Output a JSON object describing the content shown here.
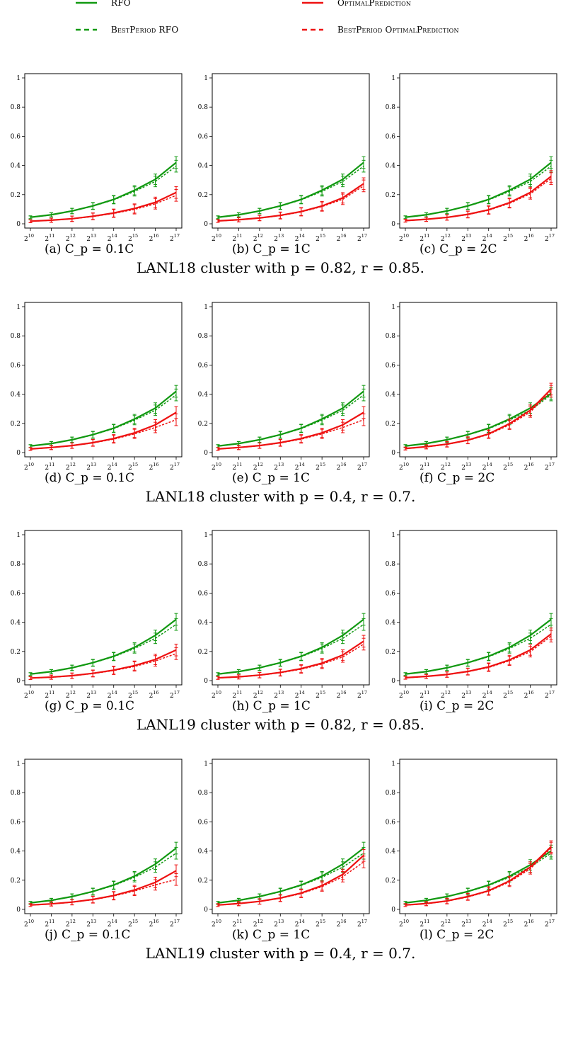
{
  "legend": [
    {
      "label": "RFO",
      "color": "#119911",
      "dashed": false
    },
    {
      "label": "OptimalPrediction",
      "color": "#ee1111",
      "dashed": false
    },
    {
      "label": "BestPeriod RFO",
      "color": "#119911",
      "dashed": true
    },
    {
      "label": "BestPeriod OptimalPrediction",
      "color": "#ee1111",
      "dashed": true
    }
  ],
  "colors": {
    "green": "#119911",
    "red": "#ee1111"
  },
  "rows": [
    {
      "caption": "LANL18 cluster with p = 0.82, r = 0.85.",
      "subcaptions": [
        "(a) C_p = 0.1C",
        "(b) C_p = 1C",
        "(c) C_p = 2C"
      ]
    },
    {
      "caption": "LANL18 cluster with p = 0.4, r = 0.7.",
      "subcaptions": [
        "(d) C_p = 0.1C",
        "(e) C_p = 1C",
        "(f) C_p = 2C"
      ]
    },
    {
      "caption": "LANL19 cluster with p = 0.82, r = 0.85.",
      "subcaptions": [
        "(g) C_p = 0.1C",
        "(h) C_p = 1C",
        "(i) C_p = 2C"
      ]
    },
    {
      "caption": "LANL19 cluster with p = 0.4, r = 0.7.",
      "subcaptions": [
        "(j) C_p = 0.1C",
        "(k) C_p = 1C",
        "(l) C_p = 2C"
      ]
    }
  ],
  "chart_data": [
    {
      "id": "a",
      "type": "line",
      "x": [
        10,
        11,
        12,
        13,
        14,
        15,
        16,
        17
      ],
      "ylim": [
        0,
        1
      ],
      "yticks": [
        "0",
        "0.2",
        "0.4",
        "0.6",
        "0.8",
        "1"
      ],
      "xticks": [
        "2^10",
        "2^11",
        "2^12",
        "2^13",
        "2^14",
        "2^15",
        "2^16",
        "2^17"
      ],
      "series": [
        {
          "name": "RFO",
          "values": [
            0.045,
            0.062,
            0.088,
            0.123,
            0.167,
            0.23,
            0.305,
            0.42
          ]
        },
        {
          "name": "BestPeriod RFO",
          "values": [
            0.044,
            0.061,
            0.087,
            0.121,
            0.164,
            0.222,
            0.29,
            0.395
          ]
        },
        {
          "name": "OptimalPrediction",
          "values": [
            0.018,
            0.025,
            0.035,
            0.052,
            0.074,
            0.105,
            0.147,
            0.215
          ]
        },
        {
          "name": "BestPeriod OptimalPrediction",
          "values": [
            0.017,
            0.024,
            0.034,
            0.05,
            0.071,
            0.099,
            0.137,
            0.195
          ]
        }
      ]
    },
    {
      "id": "b",
      "type": "line",
      "x": [
        10,
        11,
        12,
        13,
        14,
        15,
        16,
        17
      ],
      "ylim": [
        0,
        1
      ],
      "yticks": [
        "0",
        "0.2",
        "0.4",
        "0.6",
        "0.8",
        "1"
      ],
      "xticks": [
        "2^10",
        "2^11",
        "2^12",
        "2^13",
        "2^14",
        "2^15",
        "2^16",
        "2^17"
      ],
      "series": [
        {
          "name": "RFO",
          "values": [
            0.045,
            0.062,
            0.088,
            0.123,
            0.167,
            0.23,
            0.305,
            0.42
          ]
        },
        {
          "name": "BestPeriod RFO",
          "values": [
            0.044,
            0.061,
            0.087,
            0.121,
            0.164,
            0.222,
            0.29,
            0.395
          ]
        },
        {
          "name": "OptimalPrediction",
          "values": [
            0.02,
            0.028,
            0.04,
            0.058,
            0.084,
            0.122,
            0.178,
            0.275
          ]
        },
        {
          "name": "BestPeriod OptimalPrediction",
          "values": [
            0.019,
            0.027,
            0.039,
            0.056,
            0.081,
            0.118,
            0.168,
            0.26
          ]
        }
      ]
    },
    {
      "id": "c",
      "type": "line",
      "x": [
        10,
        11,
        12,
        13,
        14,
        15,
        16,
        17
      ],
      "ylim": [
        0,
        1
      ],
      "yticks": [
        "0",
        "0.2",
        "0.4",
        "0.6",
        "0.8",
        "1"
      ],
      "xticks": [
        "2^10",
        "2^11",
        "2^12",
        "2^13",
        "2^14",
        "2^15",
        "2^16",
        "2^17"
      ],
      "series": [
        {
          "name": "RFO",
          "values": [
            0.045,
            0.062,
            0.088,
            0.123,
            0.167,
            0.23,
            0.305,
            0.42
          ]
        },
        {
          "name": "BestPeriod RFO",
          "values": [
            0.044,
            0.061,
            0.087,
            0.121,
            0.164,
            0.222,
            0.29,
            0.395
          ]
        },
        {
          "name": "OptimalPrediction",
          "values": [
            0.022,
            0.031,
            0.044,
            0.065,
            0.096,
            0.145,
            0.215,
            0.325
          ]
        },
        {
          "name": "BestPeriod OptimalPrediction",
          "values": [
            0.021,
            0.03,
            0.043,
            0.063,
            0.093,
            0.14,
            0.205,
            0.31
          ]
        }
      ]
    },
    {
      "id": "d",
      "type": "line",
      "x": [
        10,
        11,
        12,
        13,
        14,
        15,
        16,
        17
      ],
      "ylim": [
        0,
        1
      ],
      "yticks": [
        "0",
        "0.2",
        "0.4",
        "0.6",
        "0.8",
        "1"
      ],
      "xticks": [
        "2^10",
        "2^11",
        "2^12",
        "2^13",
        "2^14",
        "2^15",
        "2^16",
        "2^17"
      ],
      "series": [
        {
          "name": "RFO",
          "values": [
            0.045,
            0.062,
            0.088,
            0.123,
            0.167,
            0.23,
            0.305,
            0.42
          ]
        },
        {
          "name": "BestPeriod RFO",
          "values": [
            0.044,
            0.061,
            0.087,
            0.121,
            0.164,
            0.222,
            0.29,
            0.395
          ]
        },
        {
          "name": "OptimalPrediction",
          "values": [
            0.025,
            0.035,
            0.048,
            0.068,
            0.096,
            0.135,
            0.19,
            0.275
          ]
        },
        {
          "name": "BestPeriod OptimalPrediction",
          "values": [
            0.024,
            0.034,
            0.047,
            0.066,
            0.092,
            0.128,
            0.172,
            0.225
          ]
        }
      ]
    },
    {
      "id": "e",
      "type": "line",
      "x": [
        10,
        11,
        12,
        13,
        14,
        15,
        16,
        17
      ],
      "ylim": [
        0,
        1
      ],
      "yticks": [
        "0",
        "0.2",
        "0.4",
        "0.6",
        "0.8",
        "1"
      ],
      "xticks": [
        "2^10",
        "2^11",
        "2^12",
        "2^13",
        "2^14",
        "2^15",
        "2^16",
        "2^17"
      ],
      "series": [
        {
          "name": "RFO",
          "values": [
            0.045,
            0.062,
            0.088,
            0.123,
            0.167,
            0.23,
            0.305,
            0.42
          ]
        },
        {
          "name": "BestPeriod RFO",
          "values": [
            0.044,
            0.061,
            0.087,
            0.121,
            0.164,
            0.222,
            0.29,
            0.395
          ]
        },
        {
          "name": "OptimalPrediction",
          "values": [
            0.025,
            0.035,
            0.048,
            0.068,
            0.096,
            0.135,
            0.19,
            0.275
          ]
        },
        {
          "name": "BestPeriod OptimalPrediction",
          "values": [
            0.024,
            0.034,
            0.047,
            0.066,
            0.092,
            0.128,
            0.172,
            0.225
          ]
        }
      ]
    },
    {
      "id": "f",
      "type": "line",
      "x": [
        10,
        11,
        12,
        13,
        14,
        15,
        16,
        17
      ],
      "ylim": [
        0,
        1
      ],
      "yticks": [
        "0",
        "0.2",
        "0.4",
        "0.6",
        "0.8",
        "1"
      ],
      "xticks": [
        "2^10",
        "2^11",
        "2^12",
        "2^13",
        "2^14",
        "2^15",
        "2^16",
        "2^17"
      ],
      "series": [
        {
          "name": "RFO",
          "values": [
            0.045,
            0.062,
            0.088,
            0.123,
            0.167,
            0.23,
            0.305,
            0.405
          ]
        },
        {
          "name": "BestPeriod RFO",
          "values": [
            0.044,
            0.061,
            0.087,
            0.121,
            0.164,
            0.222,
            0.29,
            0.395
          ]
        },
        {
          "name": "OptimalPrediction",
          "values": [
            0.028,
            0.04,
            0.058,
            0.085,
            0.128,
            0.198,
            0.29,
            0.435
          ]
        },
        {
          "name": "BestPeriod OptimalPrediction",
          "values": [
            0.027,
            0.039,
            0.056,
            0.083,
            0.124,
            0.19,
            0.278,
            0.42
          ]
        }
      ]
    },
    {
      "id": "g",
      "type": "line",
      "x": [
        10,
        11,
        12,
        13,
        14,
        15,
        16,
        17
      ],
      "ylim": [
        0,
        1
      ],
      "yticks": [
        "0",
        "0.2",
        "0.4",
        "0.6",
        "0.8",
        "1"
      ],
      "xticks": [
        "2^10",
        "2^11",
        "2^12",
        "2^13",
        "2^14",
        "2^15",
        "2^16",
        "2^17"
      ],
      "series": [
        {
          "name": "RFO",
          "values": [
            0.045,
            0.062,
            0.088,
            0.123,
            0.167,
            0.228,
            0.31,
            0.42
          ]
        },
        {
          "name": "BestPeriod RFO",
          "values": [
            0.044,
            0.061,
            0.087,
            0.121,
            0.164,
            0.22,
            0.29,
            0.385
          ]
        },
        {
          "name": "OptimalPrediction",
          "values": [
            0.018,
            0.024,
            0.034,
            0.05,
            0.072,
            0.103,
            0.145,
            0.21
          ]
        },
        {
          "name": "BestPeriod OptimalPrediction",
          "values": [
            0.017,
            0.023,
            0.033,
            0.048,
            0.069,
            0.097,
            0.135,
            0.185
          ]
        }
      ]
    },
    {
      "id": "h",
      "type": "line",
      "x": [
        10,
        11,
        12,
        13,
        14,
        15,
        16,
        17
      ],
      "ylim": [
        0,
        1
      ],
      "yticks": [
        "0",
        "0.2",
        "0.4",
        "0.6",
        "0.8",
        "1"
      ],
      "xticks": [
        "2^10",
        "2^11",
        "2^12",
        "2^13",
        "2^14",
        "2^15",
        "2^16",
        "2^17"
      ],
      "series": [
        {
          "name": "RFO",
          "values": [
            0.045,
            0.062,
            0.088,
            0.123,
            0.167,
            0.228,
            0.31,
            0.42
          ]
        },
        {
          "name": "BestPeriod RFO",
          "values": [
            0.044,
            0.061,
            0.087,
            0.121,
            0.164,
            0.22,
            0.29,
            0.385
          ]
        },
        {
          "name": "OptimalPrediction",
          "values": [
            0.019,
            0.026,
            0.038,
            0.056,
            0.082,
            0.12,
            0.175,
            0.27
          ]
        },
        {
          "name": "BestPeriod OptimalPrediction",
          "values": [
            0.018,
            0.025,
            0.037,
            0.054,
            0.078,
            0.114,
            0.162,
            0.25
          ]
        }
      ]
    },
    {
      "id": "i",
      "type": "line",
      "x": [
        10,
        11,
        12,
        13,
        14,
        15,
        16,
        17
      ],
      "ylim": [
        0,
        1
      ],
      "yticks": [
        "0",
        "0.2",
        "0.4",
        "0.6",
        "0.8",
        "1"
      ],
      "xticks": [
        "2^10",
        "2^11",
        "2^12",
        "2^13",
        "2^14",
        "2^15",
        "2^16",
        "2^17"
      ],
      "series": [
        {
          "name": "RFO",
          "values": [
            0.045,
            0.062,
            0.088,
            0.123,
            0.167,
            0.228,
            0.31,
            0.42
          ]
        },
        {
          "name": "BestPeriod RFO",
          "values": [
            0.044,
            0.061,
            0.087,
            0.121,
            0.164,
            0.22,
            0.29,
            0.385
          ]
        },
        {
          "name": "OptimalPrediction",
          "values": [
            0.02,
            0.029,
            0.042,
            0.063,
            0.094,
            0.142,
            0.21,
            0.32
          ]
        },
        {
          "name": "BestPeriod OptimalPrediction",
          "values": [
            0.019,
            0.028,
            0.041,
            0.061,
            0.09,
            0.136,
            0.198,
            0.305
          ]
        }
      ]
    },
    {
      "id": "j",
      "type": "line",
      "x": [
        10,
        11,
        12,
        13,
        14,
        15,
        16,
        17
      ],
      "ylim": [
        0,
        1
      ],
      "yticks": [
        "0",
        "0.2",
        "0.4",
        "0.6",
        "0.8",
        "1"
      ],
      "xticks": [
        "2^10",
        "2^11",
        "2^12",
        "2^13",
        "2^14",
        "2^15",
        "2^16",
        "2^17"
      ],
      "series": [
        {
          "name": "RFO",
          "values": [
            0.045,
            0.062,
            0.088,
            0.123,
            0.167,
            0.228,
            0.31,
            0.42
          ]
        },
        {
          "name": "BestPeriod RFO",
          "values": [
            0.044,
            0.061,
            0.087,
            0.121,
            0.164,
            0.22,
            0.29,
            0.385
          ]
        },
        {
          "name": "OptimalPrediction",
          "values": [
            0.03,
            0.038,
            0.05,
            0.068,
            0.095,
            0.133,
            0.185,
            0.265
          ]
        },
        {
          "name": "BestPeriod OptimalPrediction",
          "values": [
            0.029,
            0.037,
            0.049,
            0.066,
            0.092,
            0.126,
            0.168,
            0.205
          ]
        }
      ]
    },
    {
      "id": "k",
      "type": "line",
      "x": [
        10,
        11,
        12,
        13,
        14,
        15,
        16,
        17
      ],
      "ylim": [
        0,
        1
      ],
      "yticks": [
        "0",
        "0.2",
        "0.4",
        "0.6",
        "0.8",
        "1"
      ],
      "xticks": [
        "2^10",
        "2^11",
        "2^12",
        "2^13",
        "2^14",
        "2^15",
        "2^16",
        "2^17"
      ],
      "series": [
        {
          "name": "RFO",
          "values": [
            0.045,
            0.062,
            0.088,
            0.123,
            0.167,
            0.228,
            0.31,
            0.42
          ]
        },
        {
          "name": "BestPeriod RFO",
          "values": [
            0.044,
            0.061,
            0.087,
            0.121,
            0.164,
            0.22,
            0.29,
            0.385
          ]
        },
        {
          "name": "OptimalPrediction",
          "values": [
            0.03,
            0.04,
            0.055,
            0.078,
            0.112,
            0.163,
            0.24,
            0.37
          ]
        },
        {
          "name": "BestPeriod OptimalPrediction",
          "values": [
            0.029,
            0.039,
            0.054,
            0.076,
            0.108,
            0.156,
            0.224,
            0.325
          ]
        }
      ]
    },
    {
      "id": "l",
      "type": "line",
      "x": [
        10,
        11,
        12,
        13,
        14,
        15,
        16,
        17
      ],
      "ylim": [
        0,
        1
      ],
      "yticks": [
        "0",
        "0.2",
        "0.4",
        "0.6",
        "0.8",
        "1"
      ],
      "xticks": [
        "2^10",
        "2^11",
        "2^12",
        "2^13",
        "2^14",
        "2^15",
        "2^16",
        "2^17"
      ],
      "series": [
        {
          "name": "RFO",
          "values": [
            0.045,
            0.062,
            0.088,
            0.123,
            0.167,
            0.228,
            0.305,
            0.4
          ]
        },
        {
          "name": "BestPeriod RFO",
          "values": [
            0.044,
            0.061,
            0.087,
            0.121,
            0.164,
            0.22,
            0.29,
            0.385
          ]
        },
        {
          "name": "OptimalPrediction",
          "values": [
            0.03,
            0.04,
            0.058,
            0.088,
            0.128,
            0.195,
            0.29,
            0.43
          ]
        },
        {
          "name": "BestPeriod OptimalPrediction",
          "values": [
            0.029,
            0.039,
            0.056,
            0.085,
            0.124,
            0.188,
            0.278,
            0.42
          ]
        }
      ]
    }
  ]
}
